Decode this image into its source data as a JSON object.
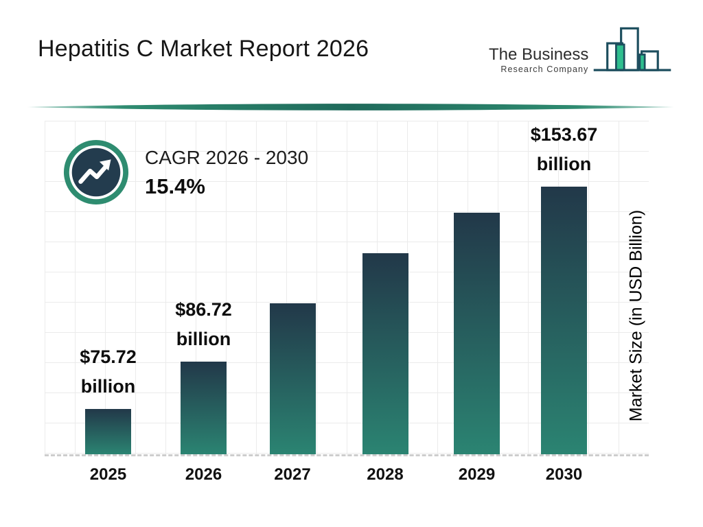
{
  "header": {
    "title": "Hepatitis C Market Report 2026",
    "logo": {
      "icon": "bar-chart-logo-icon",
      "line1": "The Business",
      "line2": "Research Company"
    }
  },
  "cagr": {
    "icon": "trending-up-icon",
    "label": "CAGR 2026 - 2030",
    "value": "15.4%"
  },
  "chart_data": {
    "type": "bar",
    "categories": [
      "2025",
      "2026",
      "2027",
      "2028",
      "2029",
      "2030"
    ],
    "values": [
      75.72,
      86.72,
      null,
      null,
      null,
      153.67
    ],
    "values_estimated": [
      75.72,
      86.72,
      100.1,
      115.5,
      133.3,
      153.67
    ],
    "value_labels": [
      [
        "$75.72",
        "billion"
      ],
      [
        "$86.72",
        "billion"
      ],
      null,
      null,
      null,
      [
        "$153.67",
        "billion"
      ]
    ],
    "bar_heights_relative": [
      0.169,
      0.346,
      0.564,
      0.751,
      0.903,
      1.0
    ],
    "xlabel": "",
    "ylabel": "Market Size (in USD Billion)",
    "grid": true,
    "baseline_style": "dashed",
    "legend": false
  },
  "colors": {
    "bar_gradient_top": "#223849",
    "bar_gradient_bottom": "#2B8472",
    "cagr_ring": "#2E8C70",
    "cagr_disc": "#233C4E",
    "divider": "#1F6A5B",
    "grid_line": "#EBEBEB",
    "baseline_dash": "#CDCDCD",
    "logo_outline": "#1D4E5E",
    "logo_green": "#2FBE8E",
    "text": "#111111"
  }
}
